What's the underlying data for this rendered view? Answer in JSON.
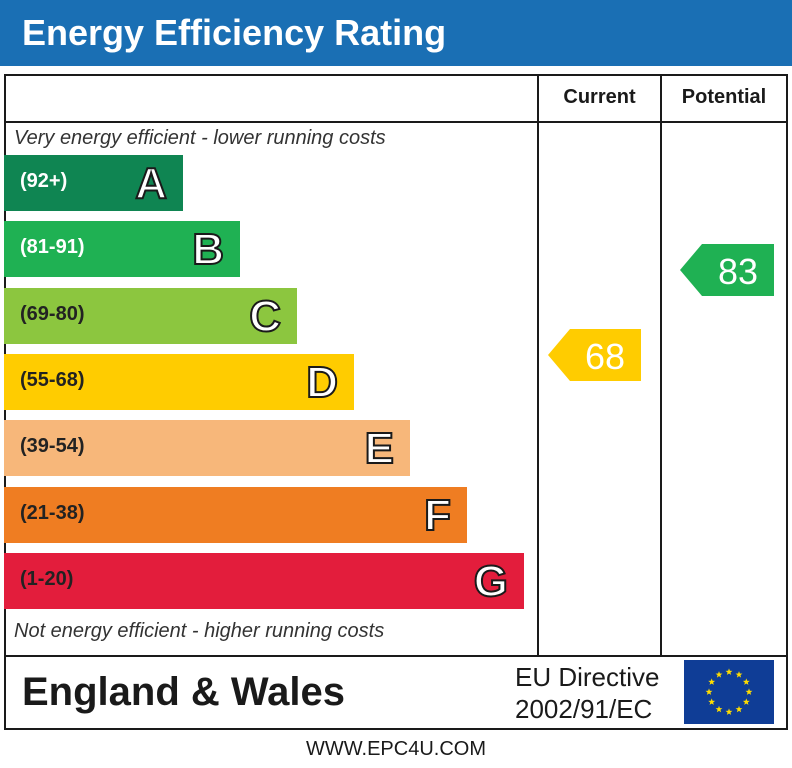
{
  "header": {
    "title": "Energy Efficiency Rating"
  },
  "columns": {
    "current": "Current",
    "potential": "Potential"
  },
  "captions": {
    "top": "Very energy efficient - lower running costs",
    "bottom": "Not energy efficient - higher running costs"
  },
  "bands": [
    {
      "range": "(92+)",
      "letter": "A",
      "color": "#0f8552"
    },
    {
      "range": "(81-91)",
      "letter": "B",
      "color": "#1fb153"
    },
    {
      "range": "(69-80)",
      "letter": "C",
      "color": "#8cc63f"
    },
    {
      "range": "(55-68)",
      "letter": "D",
      "color": "#ffcc00"
    },
    {
      "range": "(39-54)",
      "letter": "E",
      "color": "#f7b77a"
    },
    {
      "range": "(21-38)",
      "letter": "F",
      "color": "#ef7d22"
    },
    {
      "range": "(1-20)",
      "letter": "G",
      "color": "#e31d3c"
    }
  ],
  "ratings": {
    "current": {
      "value": "68",
      "color": "#ffcc00"
    },
    "potential": {
      "value": "83",
      "color": "#1fb153"
    }
  },
  "footer": {
    "region": "England & Wales",
    "directive_line1": "EU Directive",
    "directive_line2": "2002/91/EC",
    "flag_color": "#0f3d96",
    "star_color": "#ffdd00"
  },
  "url": "WWW.EPC4U.COM"
}
